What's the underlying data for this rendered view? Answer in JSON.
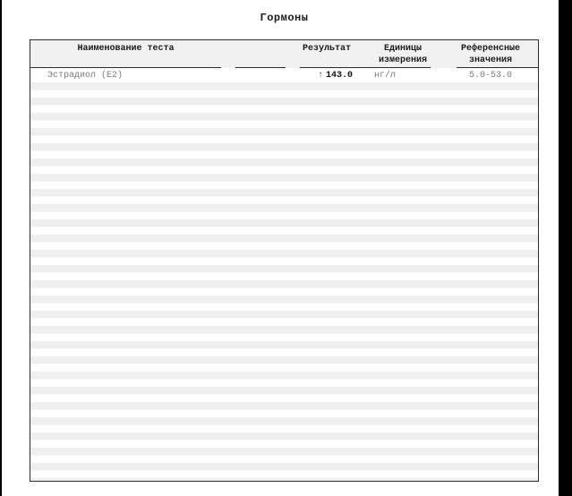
{
  "title": "Гормоны",
  "table": {
    "headers": {
      "name": "Наименование теста",
      "result": "Результат",
      "units_line1": "Единицы",
      "units_line2": "измерения",
      "ref_line1": "Референсные",
      "ref_line2": "значения"
    },
    "rows": [
      {
        "name": "Эстрадиол (E2)",
        "flag": "↑",
        "result": "143.0",
        "units": "нг/л",
        "reference": "5.0-53.0"
      }
    ]
  },
  "colors": {
    "edge_bar": "#000000",
    "header_bg": "#f1f1f1",
    "stripe": "#efefef",
    "border": "#2b2b2b",
    "muted_text": "#7d7d7d",
    "result_text": "#111111"
  }
}
